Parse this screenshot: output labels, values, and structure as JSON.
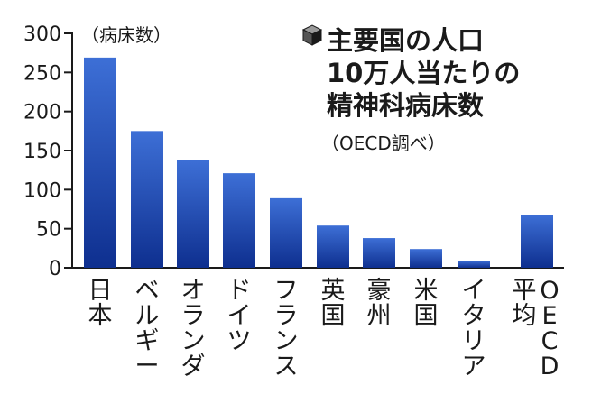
{
  "chart_data": {
    "type": "bar",
    "title_lines": [
      "主要国の人口",
      "10万人当たりの",
      "精神科病床数"
    ],
    "source": "（OECD調べ）",
    "unit_label": "（病床数）",
    "categories": [
      "日本",
      "ベルギー",
      "オランダ",
      "ドイツ",
      "フランス",
      "英国",
      "豪州",
      "米国",
      "イタリア",
      "OECD平均"
    ],
    "category_label_columns": [
      [
        "日本"
      ],
      [
        "ベルギー"
      ],
      [
        "オランダ"
      ],
      [
        "ドイツ"
      ],
      [
        "フランス"
      ],
      [
        "英国"
      ],
      [
        "豪州"
      ],
      [
        "米国"
      ],
      [
        "イタリア"
      ],
      [
        "OECD",
        "平均"
      ]
    ],
    "values": [
      269,
      175,
      138,
      121,
      89,
      54,
      38,
      24,
      9,
      68
    ],
    "ylim": [
      0,
      300
    ],
    "yticks": [
      "0",
      "50",
      "100",
      "150",
      "200",
      "250",
      "300"
    ],
    "grid": false,
    "colors": {
      "bar_top": "#3d6fd6",
      "bar_bottom": "#0e2f8f",
      "axis": "#1a1a1a"
    },
    "title_icon": "cube-icon"
  }
}
